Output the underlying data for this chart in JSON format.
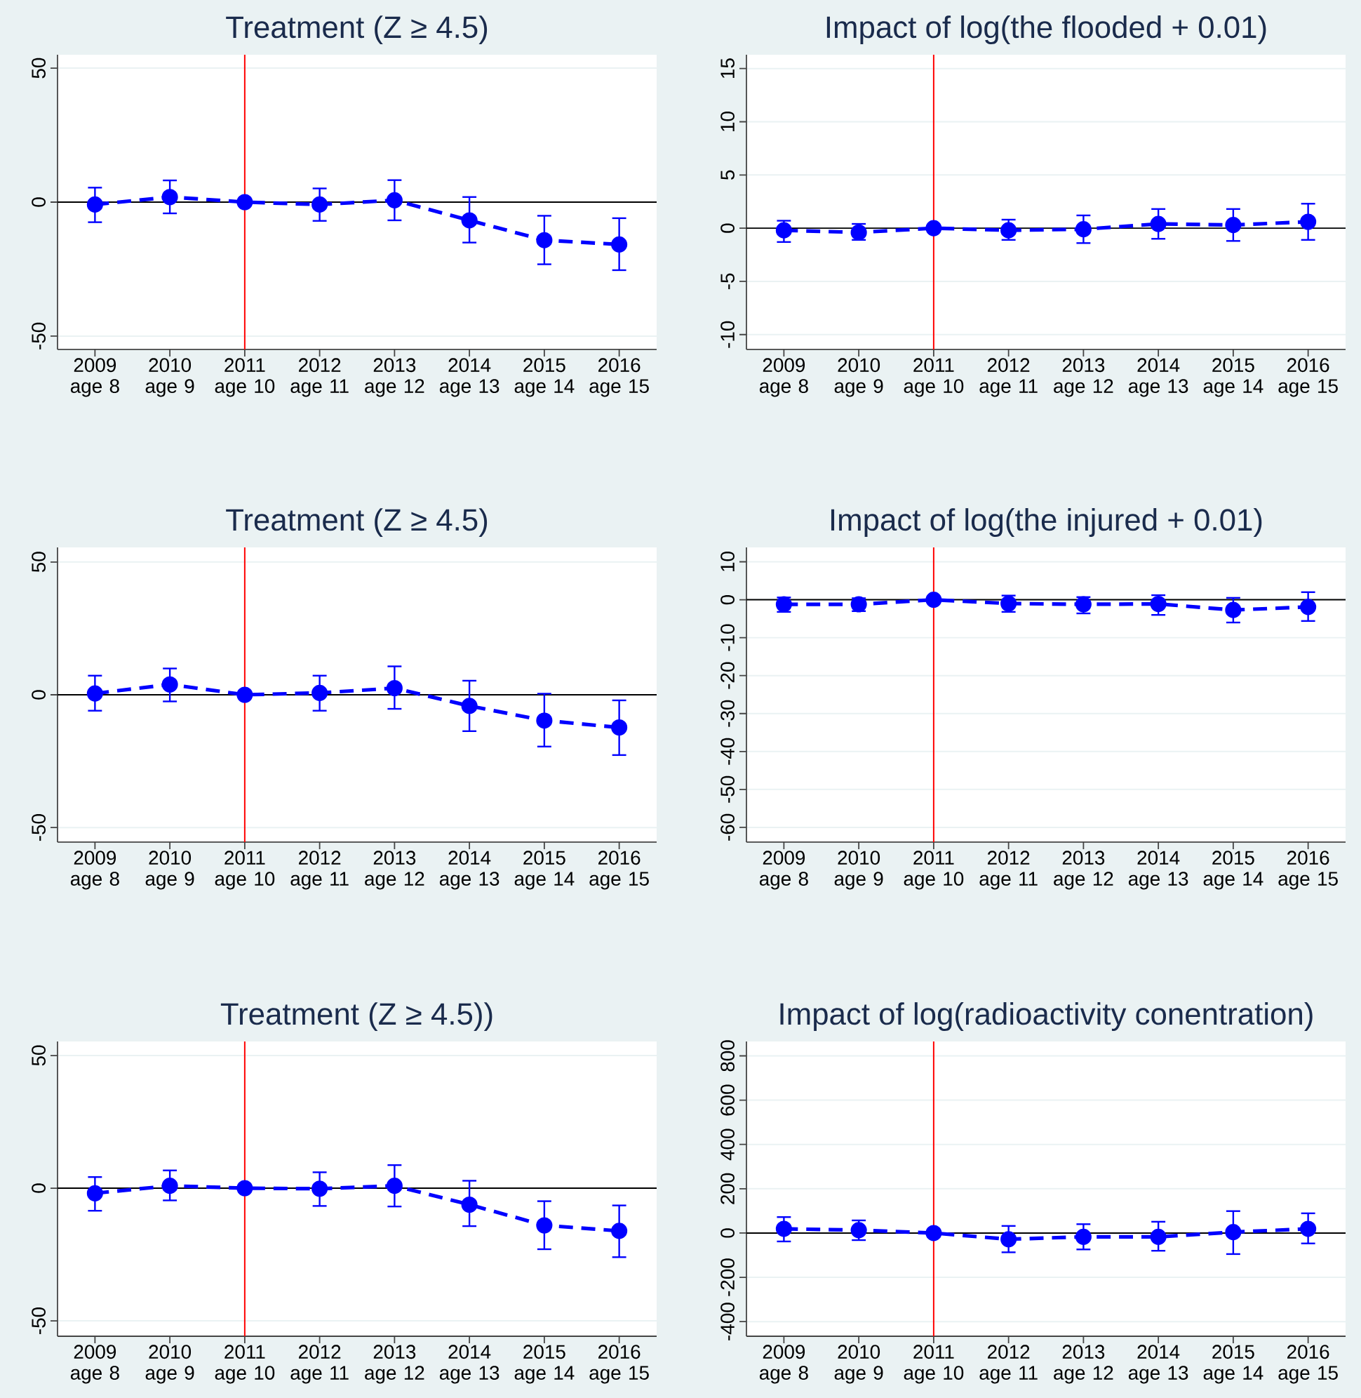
{
  "chart_data": [
    {
      "type": "line",
      "title": "Treatment (Z ≥ 4.5)",
      "categories": [
        "2009 age 8",
        "2010 age 9",
        "2011 age 10",
        "2012 age 11",
        "2013 age 12",
        "2014 age 13",
        "2015 age 14",
        "2016 age 15"
      ],
      "color": "#0000ff",
      "marker": "circle",
      "line_style": "dashed",
      "grid": "y",
      "ylim": [
        -55,
        55
      ],
      "yticks": [
        -50,
        0,
        50
      ],
      "values": [
        -0.9,
        1.9,
        0,
        -0.9,
        0.7,
        -6.8,
        -14.2,
        -15.8
      ],
      "errors": [
        [
          -7.5,
          5.4
        ],
        [
          -4.2,
          8.1
        ],
        null,
        [
          -7,
          5.1
        ],
        [
          -6.8,
          8.2
        ],
        [
          -15.1,
          1.9
        ],
        [
          -23.2,
          -5.1
        ],
        [
          -25.4,
          -6
        ]
      ],
      "ref_lines": [
        {
          "axis": "x",
          "value": "2011 age 10",
          "color": "#ff0000"
        },
        {
          "axis": "y",
          "value": 0,
          "color": "#000000"
        }
      ]
    },
    {
      "type": "line",
      "title": "Impact of log(the flooded + 0.01)",
      "categories": [
        "2009 age 8",
        "2010 age 9",
        "2011 age 10",
        "2012 age 11",
        "2013 age 12",
        "2014 age 13",
        "2015 age 14",
        "2016 age 15"
      ],
      "color": "#0000ff",
      "marker": "circle",
      "line_style": "dashed",
      "grid": "y",
      "ylim": [
        -11.4,
        16.3
      ],
      "yticks": [
        -10,
        -5,
        0,
        5,
        10,
        15
      ],
      "values": [
        -0.2,
        -0.4,
        0,
        -0.2,
        -0.1,
        0.4,
        0.3,
        0.6
      ],
      "errors": [
        [
          -1.3,
          0.7
        ],
        [
          -1.1,
          0.4
        ],
        null,
        [
          -1.1,
          0.8
        ],
        [
          -1.4,
          1.2
        ],
        [
          -1,
          1.8
        ],
        [
          -1.2,
          1.8
        ],
        [
          -1.1,
          2.3
        ]
      ],
      "ref_lines": [
        {
          "axis": "x",
          "value": "2011 age 10",
          "color": "#ff0000"
        },
        {
          "axis": "y",
          "value": 0,
          "color": "#000000"
        }
      ]
    },
    {
      "type": "line",
      "title": "Treatment (Z ≥ 4.5)",
      "categories": [
        "2009 age 8",
        "2010 age 9",
        "2011 age 10",
        "2012 age 11",
        "2013 age 12",
        "2014 age 13",
        "2015 age 14",
        "2016 age 15"
      ],
      "color": "#0000ff",
      "marker": "circle",
      "line_style": "dashed",
      "grid": "y",
      "ylim": [
        -55.5,
        55.5
      ],
      "yticks": [
        -50,
        0,
        50
      ],
      "values": [
        0.5,
        3.9,
        0,
        0.7,
        2.5,
        -4.2,
        -9.7,
        -12.3
      ],
      "errors": [
        [
          -6,
          7.2
        ],
        [
          -2.5,
          9.9
        ],
        null,
        [
          -6,
          7.2
        ],
        [
          -5.3,
          10.7
        ],
        [
          -13.7,
          5.3
        ],
        [
          -19.5,
          0.4
        ],
        [
          -22.7,
          -2.1
        ]
      ],
      "ref_lines": [
        {
          "axis": "x",
          "value": "2011 age 10",
          "color": "#ff0000"
        },
        {
          "axis": "y",
          "value": 0,
          "color": "#000000"
        }
      ]
    },
    {
      "type": "line",
      "title": "Impact of log(the injured + 0.01)",
      "categories": [
        "2009 age 8",
        "2010 age 9",
        "2011 age 10",
        "2012 age 11",
        "2013 age 12",
        "2014 age 13",
        "2015 age 14",
        "2016 age 15"
      ],
      "color": "#0000ff",
      "marker": "circle",
      "line_style": "dashed",
      "grid": "y",
      "ylim": [
        -63.9,
        13.8
      ],
      "yticks": [
        -60,
        -50,
        -40,
        -30,
        -20,
        -10,
        0,
        10
      ],
      "values": [
        -1.2,
        -1.2,
        0,
        -1,
        -1.2,
        -1.1,
        -2.7,
        -1.9
      ],
      "errors": [
        [
          -3.2,
          0.6
        ],
        [
          -3,
          0.4
        ],
        null,
        [
          -3.2,
          1.1
        ],
        [
          -3.6,
          0.7
        ],
        [
          -4,
          1.2
        ],
        [
          -6,
          0.5
        ],
        [
          -5.6,
          2
        ]
      ],
      "ref_lines": [
        {
          "axis": "x",
          "value": "2011 age 10",
          "color": "#ff0000"
        },
        {
          "axis": "y",
          "value": 0,
          "color": "#000000"
        }
      ]
    },
    {
      "type": "line",
      "title": "Treatment (Z ≥ 4.5))",
      "categories": [
        "2009 age 8",
        "2010 age 9",
        "2011 age 10",
        "2012 age 11",
        "2013 age 12",
        "2014 age 13",
        "2015 age 14",
        "2016 age 15"
      ],
      "color": "#0000ff",
      "marker": "circle",
      "line_style": "dashed",
      "grid": "y",
      "ylim": [
        -55.8,
        55.3
      ],
      "yticks": [
        -50,
        0,
        50
      ],
      "values": [
        -1.9,
        0.9,
        0,
        -0.2,
        0.9,
        -6.2,
        -14,
        -16.1
      ],
      "errors": [
        [
          -8.5,
          4.2
        ],
        [
          -4.6,
          6.7
        ],
        null,
        [
          -6.7,
          6
        ],
        [
          -6.9,
          8.7
        ],
        [
          -14.3,
          2.8
        ],
        [
          -23,
          -4.9
        ],
        [
          -26,
          -6.5
        ]
      ],
      "ref_lines": [
        {
          "axis": "x",
          "value": "2011 age 10",
          "color": "#ff0000"
        },
        {
          "axis": "y",
          "value": 0,
          "color": "#000000"
        }
      ]
    },
    {
      "type": "line",
      "title": "Impact of log(radioactivity conentration)",
      "categories": [
        "2009 age 8",
        "2010 age 9",
        "2011 age 10",
        "2012 age 11",
        "2013 age 12",
        "2014 age 13",
        "2015 age 14",
        "2016 age 15"
      ],
      "color": "#0000ff",
      "marker": "circle",
      "line_style": "dashed",
      "grid": "y",
      "ylim": [
        -466,
        865
      ],
      "yticks": [
        -400,
        -200,
        0,
        200,
        400,
        600,
        800
      ],
      "values": [
        19,
        13,
        0,
        -28,
        -17,
        -17,
        4,
        19
      ],
      "errors": [
        [
          -38,
          72
        ],
        [
          -32,
          57
        ],
        null,
        [
          -87,
          32
        ],
        [
          -74,
          40
        ],
        [
          -80,
          51
        ],
        [
          -95,
          99
        ],
        [
          -47,
          89
        ]
      ],
      "ref_lines": [
        {
          "axis": "x",
          "value": "2011 age 10",
          "color": "#ff0000"
        },
        {
          "axis": "y",
          "value": 0,
          "color": "#000000"
        }
      ]
    }
  ]
}
